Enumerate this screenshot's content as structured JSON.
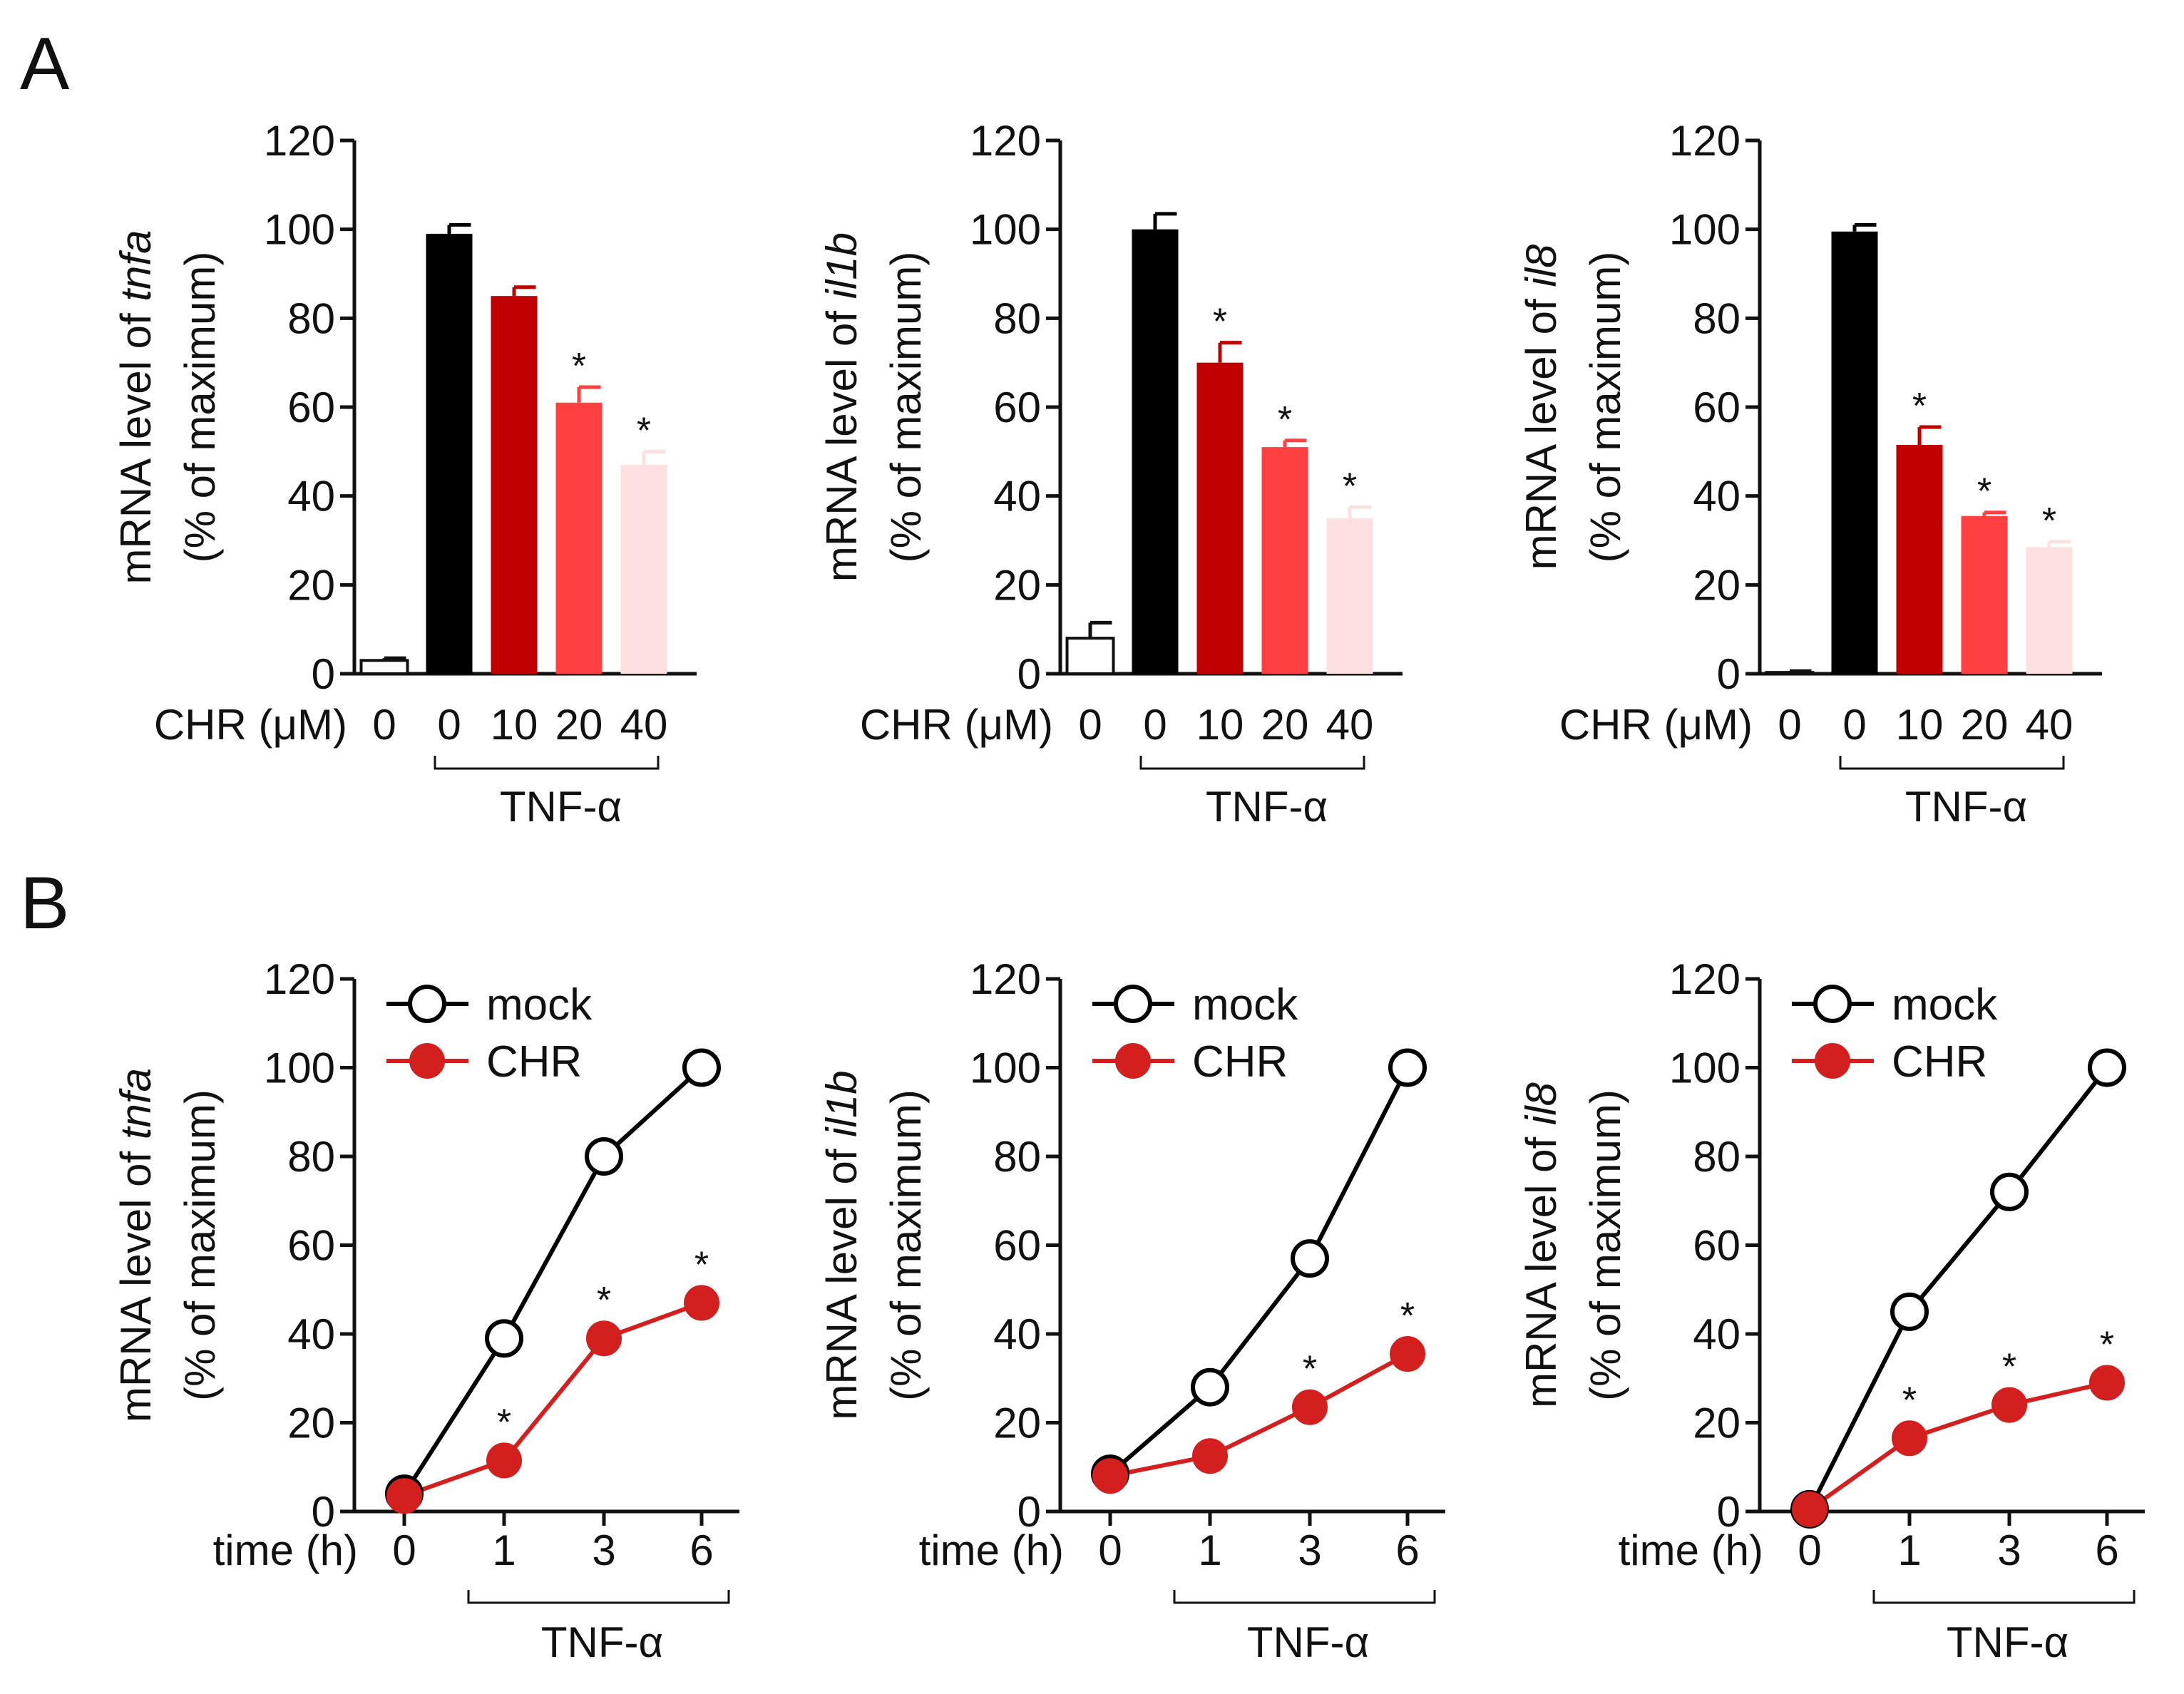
{
  "figure": {
    "panel_a_label": "A",
    "panel_b_label": "B",
    "treatment_label": "TNF-α",
    "axis_prefix": "mRNA level of ",
    "axis_unit": "(% of maximum)",
    "bar_xlabel": "CHR (μM)",
    "line_xlabel": "time (h)",
    "sig_mark": "*"
  },
  "colors": {
    "axis": "#111111",
    "control": "#ffffff",
    "tnf": "#000000",
    "chr10": "#c00000",
    "chr20": "#ff4040",
    "chr40": "#ffe0e0",
    "mock": "#000000",
    "chr_line": "#d41f1f"
  },
  "chart_data": [
    {
      "type": "bar",
      "gene": "tnfa",
      "ylabel": "mRNA level of tnfa (% of maximum)",
      "categories": [
        "0",
        "0",
        "10",
        "20",
        "40"
      ],
      "values": [
        3,
        99,
        85,
        61,
        47
      ],
      "errors": [
        0.5,
        2,
        2,
        3.5,
        3
      ],
      "significant": [
        false,
        false,
        false,
        true,
        true
      ],
      "ylim": [
        0,
        120
      ],
      "yticks": [
        "0",
        "20",
        "40",
        "60",
        "80",
        "100",
        "120"
      ]
    },
    {
      "type": "bar",
      "gene": "il1b",
      "ylabel": "mRNA level of il1b (% of maximum)",
      "categories": [
        "0",
        "0",
        "10",
        "20",
        "40"
      ],
      "values": [
        8,
        100,
        70,
        51,
        35
      ],
      "errors": [
        3.5,
        3.5,
        4.5,
        1.5,
        2.5
      ],
      "significant": [
        false,
        false,
        true,
        true,
        true
      ],
      "ylim": [
        0,
        120
      ],
      "yticks": [
        "0",
        "20",
        "40",
        "60",
        "80",
        "100",
        "120"
      ]
    },
    {
      "type": "bar",
      "gene": "il8",
      "ylabel": "mRNA level of il8 (% of maximum)",
      "categories": [
        "0",
        "0",
        "10",
        "20",
        "40"
      ],
      "values": [
        0.3,
        99.5,
        51.5,
        35.5,
        28.5
      ],
      "errors": [
        0.3,
        1.5,
        4,
        0.8,
        1.2
      ],
      "significant": [
        false,
        false,
        true,
        true,
        true
      ],
      "ylim": [
        0,
        120
      ],
      "yticks": [
        "0",
        "20",
        "40",
        "60",
        "80",
        "100",
        "120"
      ]
    },
    {
      "type": "line",
      "gene": "tnfa",
      "ylabel": "mRNA level of tnfa (% of maximum)",
      "x": [
        "0",
        "1",
        "3",
        "6"
      ],
      "series": [
        {
          "name": "mock",
          "values": [
            4,
            39,
            80,
            100
          ]
        },
        {
          "name": "CHR",
          "values": [
            3.5,
            11.5,
            39,
            47
          ],
          "significant": [
            false,
            true,
            true,
            true
          ]
        }
      ],
      "ylim": [
        0,
        120
      ],
      "yticks": [
        "0",
        "20",
        "40",
        "60",
        "80",
        "100",
        "120"
      ]
    },
    {
      "type": "line",
      "gene": "il1b",
      "ylabel": "mRNA level of il1b (% of maximum)",
      "x": [
        "0",
        "1",
        "3",
        "6"
      ],
      "series": [
        {
          "name": "mock",
          "values": [
            8.5,
            28,
            57,
            100
          ]
        },
        {
          "name": "CHR",
          "values": [
            8,
            12.5,
            23.5,
            35.5
          ],
          "significant": [
            false,
            false,
            true,
            true
          ]
        }
      ],
      "ylim": [
        0,
        120
      ],
      "yticks": [
        "0",
        "20",
        "40",
        "60",
        "80",
        "100",
        "120"
      ]
    },
    {
      "type": "line",
      "gene": "il8",
      "ylabel": "mRNA level of il8 (% of maximum)",
      "x": [
        "0",
        "1",
        "3",
        "6"
      ],
      "series": [
        {
          "name": "mock",
          "values": [
            0.5,
            45,
            72,
            100
          ]
        },
        {
          "name": "CHR",
          "values": [
            0.5,
            16.5,
            24,
            29
          ],
          "significant": [
            false,
            true,
            true,
            true
          ]
        }
      ],
      "ylim": [
        0,
        120
      ],
      "yticks": [
        "0",
        "20",
        "40",
        "60",
        "80",
        "100",
        "120"
      ]
    }
  ]
}
